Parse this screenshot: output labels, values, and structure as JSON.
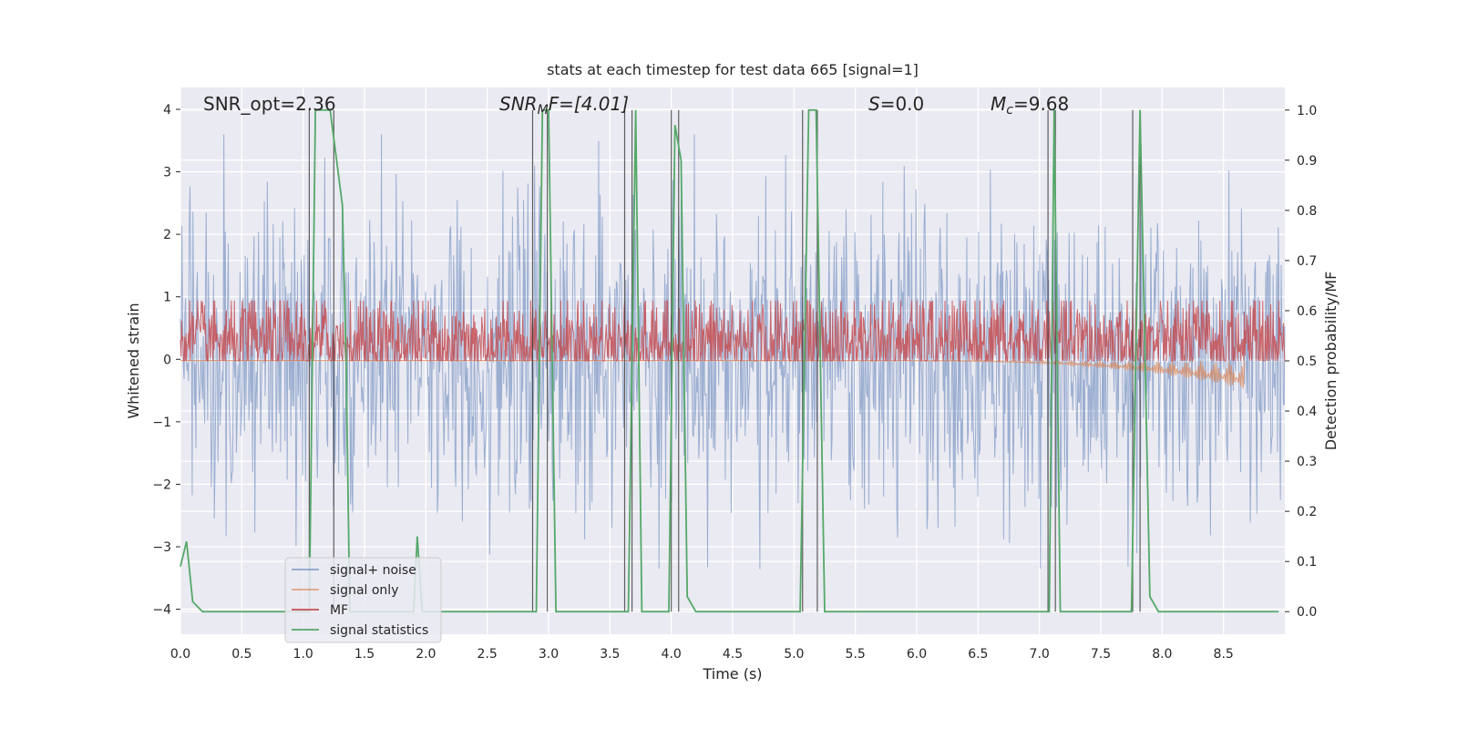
{
  "chart_data": {
    "type": "line",
    "title": "stats at each timestep for test data 665 [signal=1]",
    "xlabel": "Time (s)",
    "ylabel": "Whitened strain",
    "y2label": "Detection probability/MF",
    "xlim": [
      0.0,
      9.0
    ],
    "ylim": [
      -4.4,
      4.35
    ],
    "y2lim": [
      -0.045,
      1.045
    ],
    "xticks": [
      "0.0",
      "0.5",
      "1.0",
      "1.5",
      "2.0",
      "2.5",
      "3.0",
      "3.5",
      "4.0",
      "4.5",
      "5.0",
      "5.5",
      "6.0",
      "6.5",
      "7.0",
      "7.5",
      "8.0",
      "8.5"
    ],
    "xtick_values": [
      0.0,
      0.5,
      1.0,
      1.5,
      2.0,
      2.5,
      3.0,
      3.5,
      4.0,
      4.5,
      5.0,
      5.5,
      6.0,
      6.5,
      7.0,
      7.5,
      8.0,
      8.5
    ],
    "yticks": [
      "−4",
      "−3",
      "−2",
      "−1",
      "0",
      "1",
      "2",
      "3",
      "4"
    ],
    "ytick_values": [
      -4,
      -3,
      -2,
      -1,
      0,
      1,
      2,
      3,
      4
    ],
    "y2ticks": [
      "0.0",
      "0.1",
      "0.2",
      "0.3",
      "0.4",
      "0.5",
      "0.6",
      "0.7",
      "0.8",
      "0.9",
      "1.0"
    ],
    "y2tick_values": [
      0.0,
      0.1,
      0.2,
      0.3,
      0.4,
      0.5,
      0.6,
      0.7,
      0.8,
      0.9,
      1.0
    ],
    "grid": true,
    "legend_position": "lower-left",
    "annotations": {
      "snr_opt": "SNR_opt=2.36",
      "snr_mf_main": "SNR",
      "snr_mf_sub": "M",
      "snr_mf_rest": "F=[4.01]",
      "s_main": "S",
      "s_rest": "=0.0",
      "mc_main": "M",
      "mc_sub": "c",
      "mc_rest": "=9.68"
    },
    "series": [
      {
        "name": "signal+ noise",
        "color": "#4c72b0",
        "axis": "left",
        "style": "noise",
        "t_start": 0.0,
        "t_end": 9.0,
        "envelope": 2.0
      },
      {
        "name": "signal only",
        "color": "#dd8452",
        "axis": "left",
        "style": "chirp",
        "t_start": 0.0,
        "t_end": 8.67,
        "final_amplitude": 0.5
      },
      {
        "name": "MF",
        "color": "#c44e52",
        "axis": "right",
        "style": "mf",
        "t_start": 0.0,
        "t_end": 9.0,
        "baseline": 0.535,
        "spread": 0.05
      },
      {
        "name": "signal statistics",
        "color": "#55a868",
        "axis": "right",
        "style": "line",
        "points": [
          [
            0.0,
            0.09
          ],
          [
            0.05,
            0.14
          ],
          [
            0.1,
            0.02
          ],
          [
            0.18,
            0.0
          ],
          [
            1.0,
            0.0
          ],
          [
            1.05,
            0.0
          ],
          [
            1.1,
            1.0
          ],
          [
            1.22,
            1.0
          ],
          [
            1.32,
            0.81
          ],
          [
            1.35,
            0.5
          ],
          [
            1.38,
            0.0
          ],
          [
            1.9,
            0.0
          ],
          [
            1.93,
            0.15
          ],
          [
            1.97,
            0.0
          ],
          [
            2.9,
            0.0
          ],
          [
            2.95,
            1.0
          ],
          [
            3.0,
            1.0
          ],
          [
            3.06,
            0.0
          ],
          [
            3.65,
            0.0
          ],
          [
            3.71,
            1.0
          ],
          [
            3.76,
            0.0
          ],
          [
            3.98,
            0.0
          ],
          [
            4.03,
            0.97
          ],
          [
            4.08,
            0.9
          ],
          [
            4.13,
            0.03
          ],
          [
            4.2,
            0.0
          ],
          [
            5.05,
            0.0
          ],
          [
            5.12,
            1.0
          ],
          [
            5.18,
            1.0
          ],
          [
            5.25,
            0.0
          ],
          [
            7.08,
            0.0
          ],
          [
            7.12,
            1.0
          ],
          [
            7.17,
            0.0
          ],
          [
            7.75,
            0.0
          ],
          [
            7.82,
            1.0
          ],
          [
            7.9,
            0.03
          ],
          [
            7.97,
            0.0
          ],
          [
            8.95,
            0.0
          ]
        ]
      }
    ],
    "detection_markers": [
      1.05,
      1.25,
      2.87,
      2.99,
      3.62,
      3.68,
      4.0,
      4.06,
      5.07,
      5.19,
      7.07,
      7.13,
      7.76,
      7.82
    ]
  }
}
